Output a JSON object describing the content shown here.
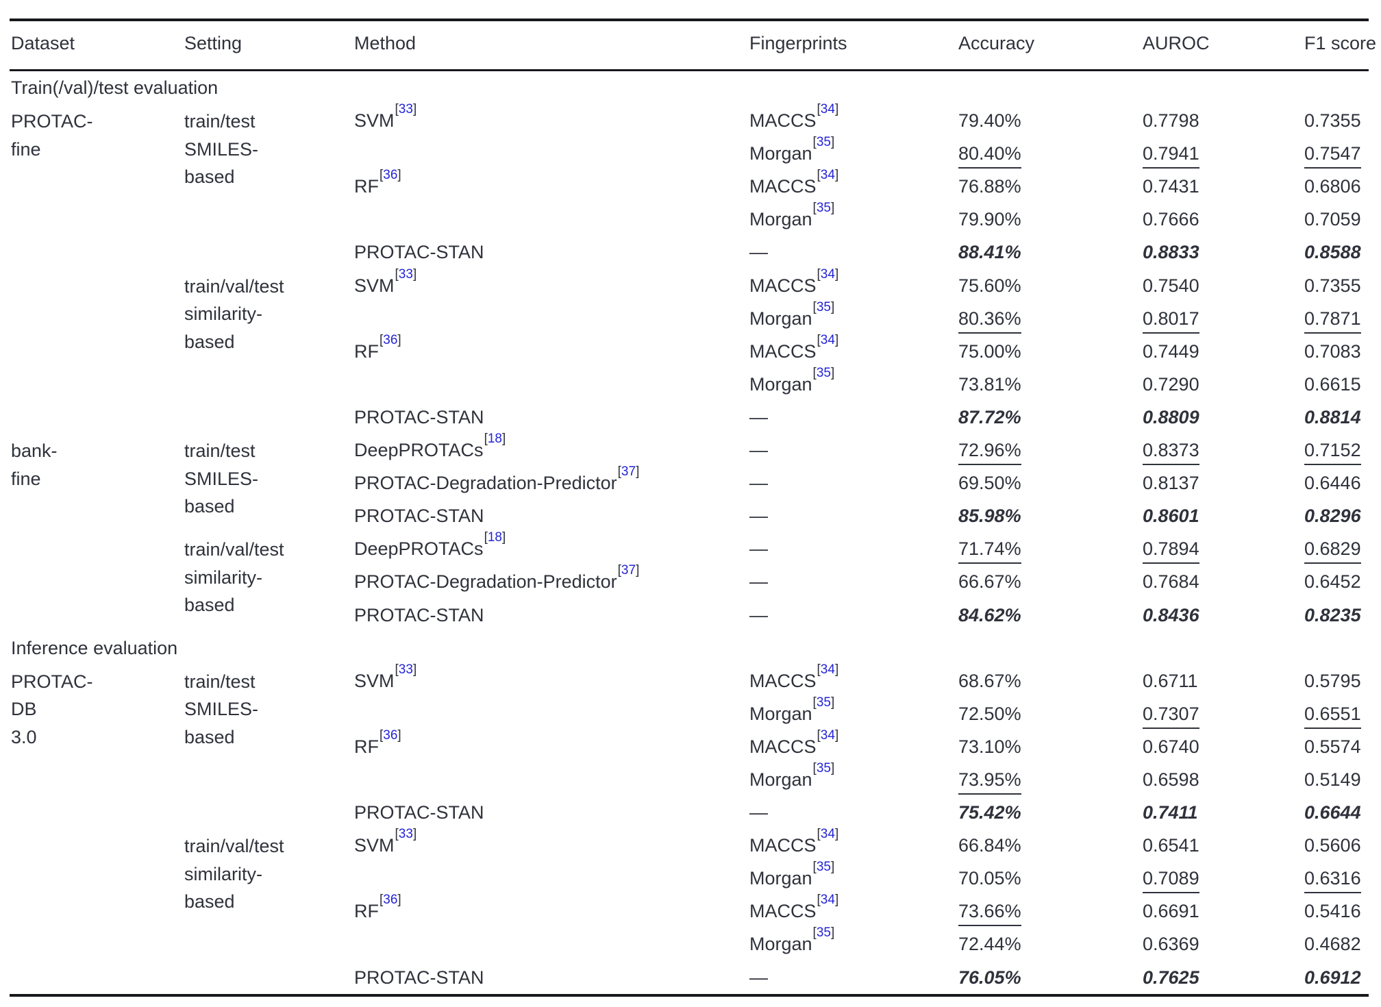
{
  "colors": {
    "text": "#2f323b",
    "rule": "#17181c",
    "citation_blue": "#2323d6"
  },
  "table": {
    "columns": [
      "Dataset",
      "Setting",
      "Method",
      "Fingerprints",
      "Accuracy",
      "AUROC",
      "F1 score"
    ],
    "sections": [
      {
        "label": "Train(/val)/test evaluation",
        "rows": [
          {
            "dataset": {
              "text": "PROTAC-\nfine",
              "rowspan": 10
            },
            "setting": {
              "text": "train/test\nSMILES-\nbased",
              "rowspan": 5
            },
            "method": {
              "text": "SVM",
              "cite": "33",
              "rowspan": 2
            },
            "fingerprints": {
              "text": "MACCS",
              "cite": "34"
            },
            "accuracy": {
              "text": "79.40%",
              "style": "plain"
            },
            "auroc": {
              "text": "0.7798",
              "style": "plain"
            },
            "f1": {
              "text": "0.7355",
              "style": "plain"
            }
          },
          {
            "fingerprints": {
              "text": "Morgan",
              "cite": "35"
            },
            "accuracy": {
              "text": "80.40%",
              "style": "underline"
            },
            "auroc": {
              "text": "0.7941",
              "style": "underline"
            },
            "f1": {
              "text": "0.7547",
              "style": "underline"
            }
          },
          {
            "method": {
              "text": "RF",
              "cite": "36",
              "rowspan": 2
            },
            "fingerprints": {
              "text": "MACCS",
              "cite": "34"
            },
            "accuracy": {
              "text": "76.88%",
              "style": "plain"
            },
            "auroc": {
              "text": "0.7431",
              "style": "plain"
            },
            "f1": {
              "text": "0.6806",
              "style": "plain"
            }
          },
          {
            "fingerprints": {
              "text": "Morgan",
              "cite": "35"
            },
            "accuracy": {
              "text": "79.90%",
              "style": "plain"
            },
            "auroc": {
              "text": "0.7666",
              "style": "plain"
            },
            "f1": {
              "text": "0.7059",
              "style": "plain"
            }
          },
          {
            "method": {
              "text": "PROTAC-STAN"
            },
            "fingerprints": {
              "text": "—"
            },
            "accuracy": {
              "text": "88.41%",
              "style": "best"
            },
            "auroc": {
              "text": "0.8833",
              "style": "best"
            },
            "f1": {
              "text": "0.8588",
              "style": "best"
            }
          },
          {
            "setting": {
              "text": "train/val/test\nsimilarity-\nbased",
              "rowspan": 5
            },
            "method": {
              "text": "SVM",
              "cite": "33",
              "rowspan": 2
            },
            "fingerprints": {
              "text": "MACCS",
              "cite": "34"
            },
            "accuracy": {
              "text": "75.60%",
              "style": "plain"
            },
            "auroc": {
              "text": "0.7540",
              "style": "plain"
            },
            "f1": {
              "text": "0.7355",
              "style": "plain"
            }
          },
          {
            "fingerprints": {
              "text": "Morgan",
              "cite": "35"
            },
            "accuracy": {
              "text": "80.36%",
              "style": "underline"
            },
            "auroc": {
              "text": "0.8017",
              "style": "underline"
            },
            "f1": {
              "text": "0.7871",
              "style": "underline"
            }
          },
          {
            "method": {
              "text": "RF",
              "cite": "36",
              "rowspan": 2
            },
            "fingerprints": {
              "text": "MACCS",
              "cite": "34"
            },
            "accuracy": {
              "text": "75.00%",
              "style": "plain"
            },
            "auroc": {
              "text": "0.7449",
              "style": "plain"
            },
            "f1": {
              "text": "0.7083",
              "style": "plain"
            }
          },
          {
            "fingerprints": {
              "text": "Morgan",
              "cite": "35"
            },
            "accuracy": {
              "text": "73.81%",
              "style": "plain"
            },
            "auroc": {
              "text": "0.7290",
              "style": "plain"
            },
            "f1": {
              "text": "0.6615",
              "style": "plain"
            }
          },
          {
            "method": {
              "text": "PROTAC-STAN"
            },
            "fingerprints": {
              "text": "—"
            },
            "accuracy": {
              "text": "87.72%",
              "style": "best"
            },
            "auroc": {
              "text": "0.8809",
              "style": "best"
            },
            "f1": {
              "text": "0.8814",
              "style": "best"
            }
          },
          {
            "dataset": {
              "text": "bank-\nfine",
              "rowspan": 6
            },
            "setting": {
              "text": "train/test\nSMILES-\nbased",
              "rowspan": 3
            },
            "method": {
              "text": "DeepPROTACs",
              "cite": "18"
            },
            "fingerprints": {
              "text": "—"
            },
            "accuracy": {
              "text": "72.96%",
              "style": "underline"
            },
            "auroc": {
              "text": "0.8373",
              "style": "underline"
            },
            "f1": {
              "text": "0.7152",
              "style": "underline"
            }
          },
          {
            "method": {
              "text": "PROTAC-Degradation-Predictor",
              "cite": "37"
            },
            "fingerprints": {
              "text": "—"
            },
            "accuracy": {
              "text": "69.50%",
              "style": "plain"
            },
            "auroc": {
              "text": "0.8137",
              "style": "plain"
            },
            "f1": {
              "text": "0.6446",
              "style": "plain"
            }
          },
          {
            "method": {
              "text": "PROTAC-STAN"
            },
            "fingerprints": {
              "text": "—"
            },
            "accuracy": {
              "text": "85.98%",
              "style": "best"
            },
            "auroc": {
              "text": "0.8601",
              "style": "best"
            },
            "f1": {
              "text": "0.8296",
              "style": "best"
            }
          },
          {
            "setting": {
              "text": "train/val/test\nsimilarity-\nbased",
              "rowspan": 3
            },
            "method": {
              "text": "DeepPROTACs",
              "cite": "18"
            },
            "fingerprints": {
              "text": "—"
            },
            "accuracy": {
              "text": "71.74%",
              "style": "underline"
            },
            "auroc": {
              "text": "0.7894",
              "style": "underline"
            },
            "f1": {
              "text": "0.6829",
              "style": "underline"
            }
          },
          {
            "method": {
              "text": "PROTAC-Degradation-Predictor",
              "cite": "37"
            },
            "fingerprints": {
              "text": "—"
            },
            "accuracy": {
              "text": "66.67%",
              "style": "plain"
            },
            "auroc": {
              "text": "0.7684",
              "style": "plain"
            },
            "f1": {
              "text": "0.6452",
              "style": "plain"
            }
          },
          {
            "method": {
              "text": "PROTAC-STAN"
            },
            "fingerprints": {
              "text": "—"
            },
            "accuracy": {
              "text": "84.62%",
              "style": "best"
            },
            "auroc": {
              "text": "0.8436",
              "style": "best"
            },
            "f1": {
              "text": "0.8235",
              "style": "best"
            }
          }
        ]
      },
      {
        "label": "Inference evaluation",
        "rows": [
          {
            "dataset": {
              "text": "PROTAC-\nDB\n3.0",
              "rowspan": 10
            },
            "setting": {
              "text": "train/test\nSMILES-\nbased",
              "rowspan": 5
            },
            "method": {
              "text": "SVM",
              "cite": "33",
              "rowspan": 2
            },
            "fingerprints": {
              "text": "MACCS",
              "cite": "34"
            },
            "accuracy": {
              "text": "68.67%",
              "style": "plain"
            },
            "auroc": {
              "text": "0.6711",
              "style": "plain"
            },
            "f1": {
              "text": "0.5795",
              "style": "plain"
            }
          },
          {
            "fingerprints": {
              "text": "Morgan",
              "cite": "35"
            },
            "accuracy": {
              "text": "72.50%",
              "style": "plain"
            },
            "auroc": {
              "text": "0.7307",
              "style": "underline"
            },
            "f1": {
              "text": "0.6551",
              "style": "underline"
            }
          },
          {
            "method": {
              "text": "RF",
              "cite": "36",
              "rowspan": 2
            },
            "fingerprints": {
              "text": "MACCS",
              "cite": "34"
            },
            "accuracy": {
              "text": "73.10%",
              "style": "plain"
            },
            "auroc": {
              "text": "0.6740",
              "style": "plain"
            },
            "f1": {
              "text": "0.5574",
              "style": "plain"
            }
          },
          {
            "fingerprints": {
              "text": "Morgan",
              "cite": "35"
            },
            "accuracy": {
              "text": "73.95%",
              "style": "underline"
            },
            "auroc": {
              "text": "0.6598",
              "style": "plain"
            },
            "f1": {
              "text": "0.5149",
              "style": "plain"
            }
          },
          {
            "method": {
              "text": "PROTAC-STAN"
            },
            "fingerprints": {
              "text": "—"
            },
            "accuracy": {
              "text": "75.42%",
              "style": "best"
            },
            "auroc": {
              "text": "0.7411",
              "style": "best"
            },
            "f1": {
              "text": "0.6644",
              "style": "best"
            }
          },
          {
            "setting": {
              "text": "train/val/test\nsimilarity-\nbased",
              "rowspan": 5
            },
            "method": {
              "text": "SVM",
              "cite": "33",
              "rowspan": 2
            },
            "fingerprints": {
              "text": "MACCS",
              "cite": "34"
            },
            "accuracy": {
              "text": "66.84%",
              "style": "plain"
            },
            "auroc": {
              "text": "0.6541",
              "style": "plain"
            },
            "f1": {
              "text": "0.5606",
              "style": "plain"
            }
          },
          {
            "fingerprints": {
              "text": "Morgan",
              "cite": "35"
            },
            "accuracy": {
              "text": "70.05%",
              "style": "plain"
            },
            "auroc": {
              "text": "0.7089",
              "style": "underline"
            },
            "f1": {
              "text": "0.6316",
              "style": "underline"
            }
          },
          {
            "method": {
              "text": "RF",
              "cite": "36",
              "rowspan": 2
            },
            "fingerprints": {
              "text": "MACCS",
              "cite": "34"
            },
            "accuracy": {
              "text": "73.66%",
              "style": "underline"
            },
            "auroc": {
              "text": "0.6691",
              "style": "plain"
            },
            "f1": {
              "text": "0.5416",
              "style": "plain"
            }
          },
          {
            "fingerprints": {
              "text": "Morgan",
              "cite": "35"
            },
            "accuracy": {
              "text": "72.44%",
              "style": "plain"
            },
            "auroc": {
              "text": "0.6369",
              "style": "plain"
            },
            "f1": {
              "text": "0.4682",
              "style": "plain"
            }
          },
          {
            "method": {
              "text": "PROTAC-STAN"
            },
            "fingerprints": {
              "text": "—"
            },
            "accuracy": {
              "text": "76.05%",
              "style": "best"
            },
            "auroc": {
              "text": "0.7625",
              "style": "best"
            },
            "f1": {
              "text": "0.6912",
              "style": "best"
            }
          }
        ]
      }
    ]
  }
}
